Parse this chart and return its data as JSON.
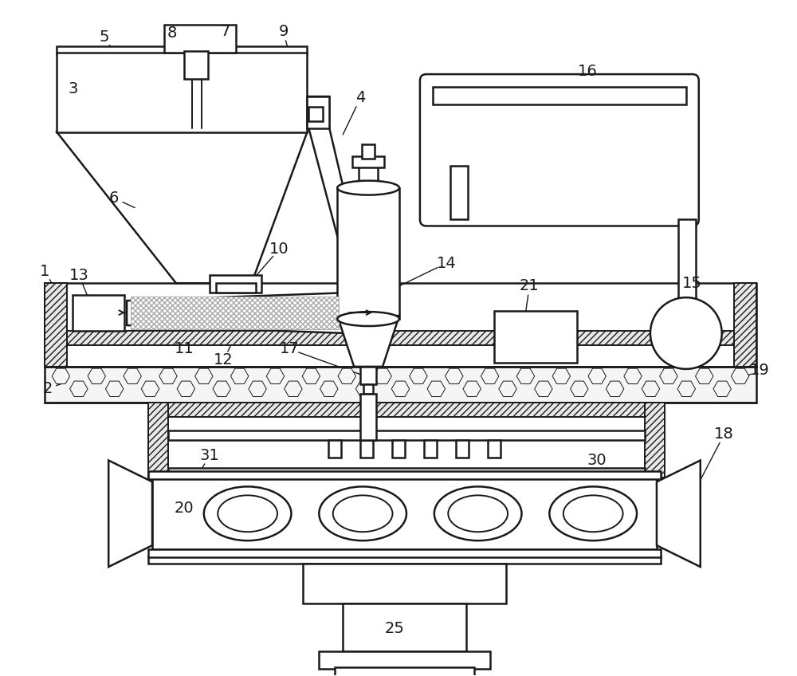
{
  "bg_color": "#ffffff",
  "line_color": "#1a1a1a",
  "label_color": "#1a1a1a",
  "label_fontsize": 14,
  "figsize": [
    10.0,
    8.48
  ],
  "dpi": 100
}
